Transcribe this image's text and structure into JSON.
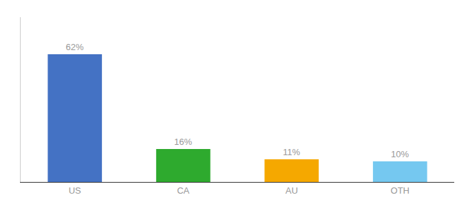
{
  "chart_data": {
    "type": "bar",
    "categories": [
      "US",
      "CA",
      "AU",
      "OTH"
    ],
    "values": [
      62,
      16,
      11,
      10
    ],
    "value_labels": [
      "62%",
      "16%",
      "11%",
      "10%"
    ],
    "colors": [
      "#4472c4",
      "#2eaa2e",
      "#f5a800",
      "#75c8f0"
    ],
    "ylim": [
      0,
      80
    ],
    "data_labels": true,
    "tick_labels": "x",
    "grid": false
  }
}
